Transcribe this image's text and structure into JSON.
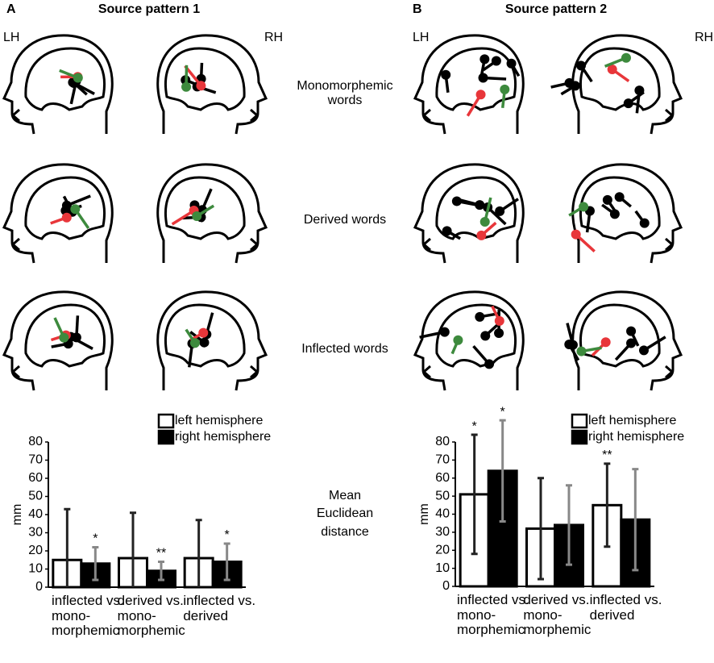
{
  "panels": [
    {
      "letter": "A",
      "title": "Source pattern 1",
      "left": "LH",
      "right": "RH"
    },
    {
      "letter": "B",
      "title": "Source pattern 2",
      "left": "LH",
      "right": "RH"
    }
  ],
  "row_labels": [
    "Monomorphemic words",
    "Derived words",
    "Inflected words"
  ],
  "center_label": "Mean Euclidean distance",
  "chart_data": [
    {
      "type": "bar",
      "ylabel": "mm",
      "categories": [
        "inflected vs. mono-morphemic",
        "derived vs. mono-morphemic",
        "inflected vs. derived"
      ],
      "series": [
        {
          "name": "left hemisphere",
          "color": "#ffffff",
          "edge": "#000000",
          "error_color": "#222222",
          "values": [
            15,
            16,
            16
          ],
          "errors": [
            28,
            25,
            21
          ]
        },
        {
          "name": "right hemisphere",
          "color": "#000000",
          "edge": "#000000",
          "error_color": "#888888",
          "values": [
            13,
            9,
            14
          ],
          "errors": [
            9,
            5,
            10
          ],
          "markers": [
            "*",
            "**",
            "*"
          ]
        }
      ],
      "ylim": [
        0,
        80
      ],
      "yticks": [
        0,
        10,
        20,
        30,
        40,
        50,
        60,
        70,
        80
      ],
      "legend": "top-right"
    },
    {
      "type": "bar",
      "ylabel": "mm",
      "categories": [
        "inflected vs. mono-morphemic",
        "derived vs. mono-morphemic",
        "inflected vs. derived"
      ],
      "series": [
        {
          "name": "left hemisphere",
          "color": "#ffffff",
          "edge": "#000000",
          "error_color": "#222222",
          "values": [
            51,
            32,
            45
          ],
          "errors": [
            33,
            28,
            23
          ],
          "markers": [
            "*",
            null,
            "**"
          ]
        },
        {
          "name": "right hemisphere",
          "color": "#000000",
          "edge": "#000000",
          "error_color": "#888888",
          "values": [
            64,
            34,
            37
          ],
          "errors": [
            28,
            22,
            28
          ],
          "markers": [
            "*",
            null,
            null
          ]
        }
      ],
      "ylim": [
        0,
        80
      ],
      "yticks": [
        0,
        10,
        20,
        30,
        40,
        50,
        60,
        70,
        80
      ],
      "legend": "top-right"
    }
  ]
}
